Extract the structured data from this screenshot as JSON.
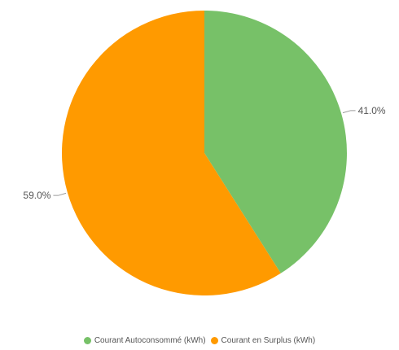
{
  "chart_data": {
    "type": "pie",
    "title": "",
    "categories": [
      "Courant Autoconsommé (kWh)",
      "Courant en Surplus (kWh)"
    ],
    "values": [
      41.0,
      59.0
    ],
    "labels": [
      "41.0%",
      "59.0%"
    ],
    "colors": [
      "#77c168",
      "#ff9a00"
    ],
    "start_angle_deg": 0,
    "direction": "clockwise",
    "legend_position": "bottom",
    "grid": false
  }
}
